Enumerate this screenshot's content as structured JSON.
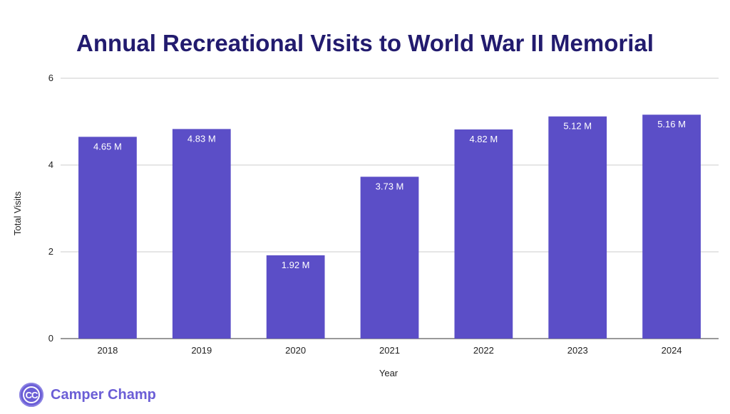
{
  "chart_data": {
    "type": "bar",
    "title": "Annual Recreational Visits to World War II Memorial",
    "xlabel": "Year",
    "ylabel": "Total Visits",
    "categories": [
      "2018",
      "2019",
      "2020",
      "2021",
      "2022",
      "2023",
      "2024"
    ],
    "values": [
      4.65,
      4.83,
      1.92,
      3.73,
      4.82,
      5.12,
      5.16
    ],
    "data_labels": [
      "4.65 M",
      "4.83 M",
      "1.92 M",
      "3.73 M",
      "4.82 M",
      "5.12 M",
      "5.16 M"
    ],
    "ylim": [
      0,
      6
    ],
    "yticks": [
      "0",
      "2",
      "4",
      "6"
    ],
    "grid": true,
    "bar_color": "#5b4ec7"
  },
  "branding": {
    "logo_text": "CC",
    "name": "Camper Champ",
    "color": "#6b5ed6"
  }
}
